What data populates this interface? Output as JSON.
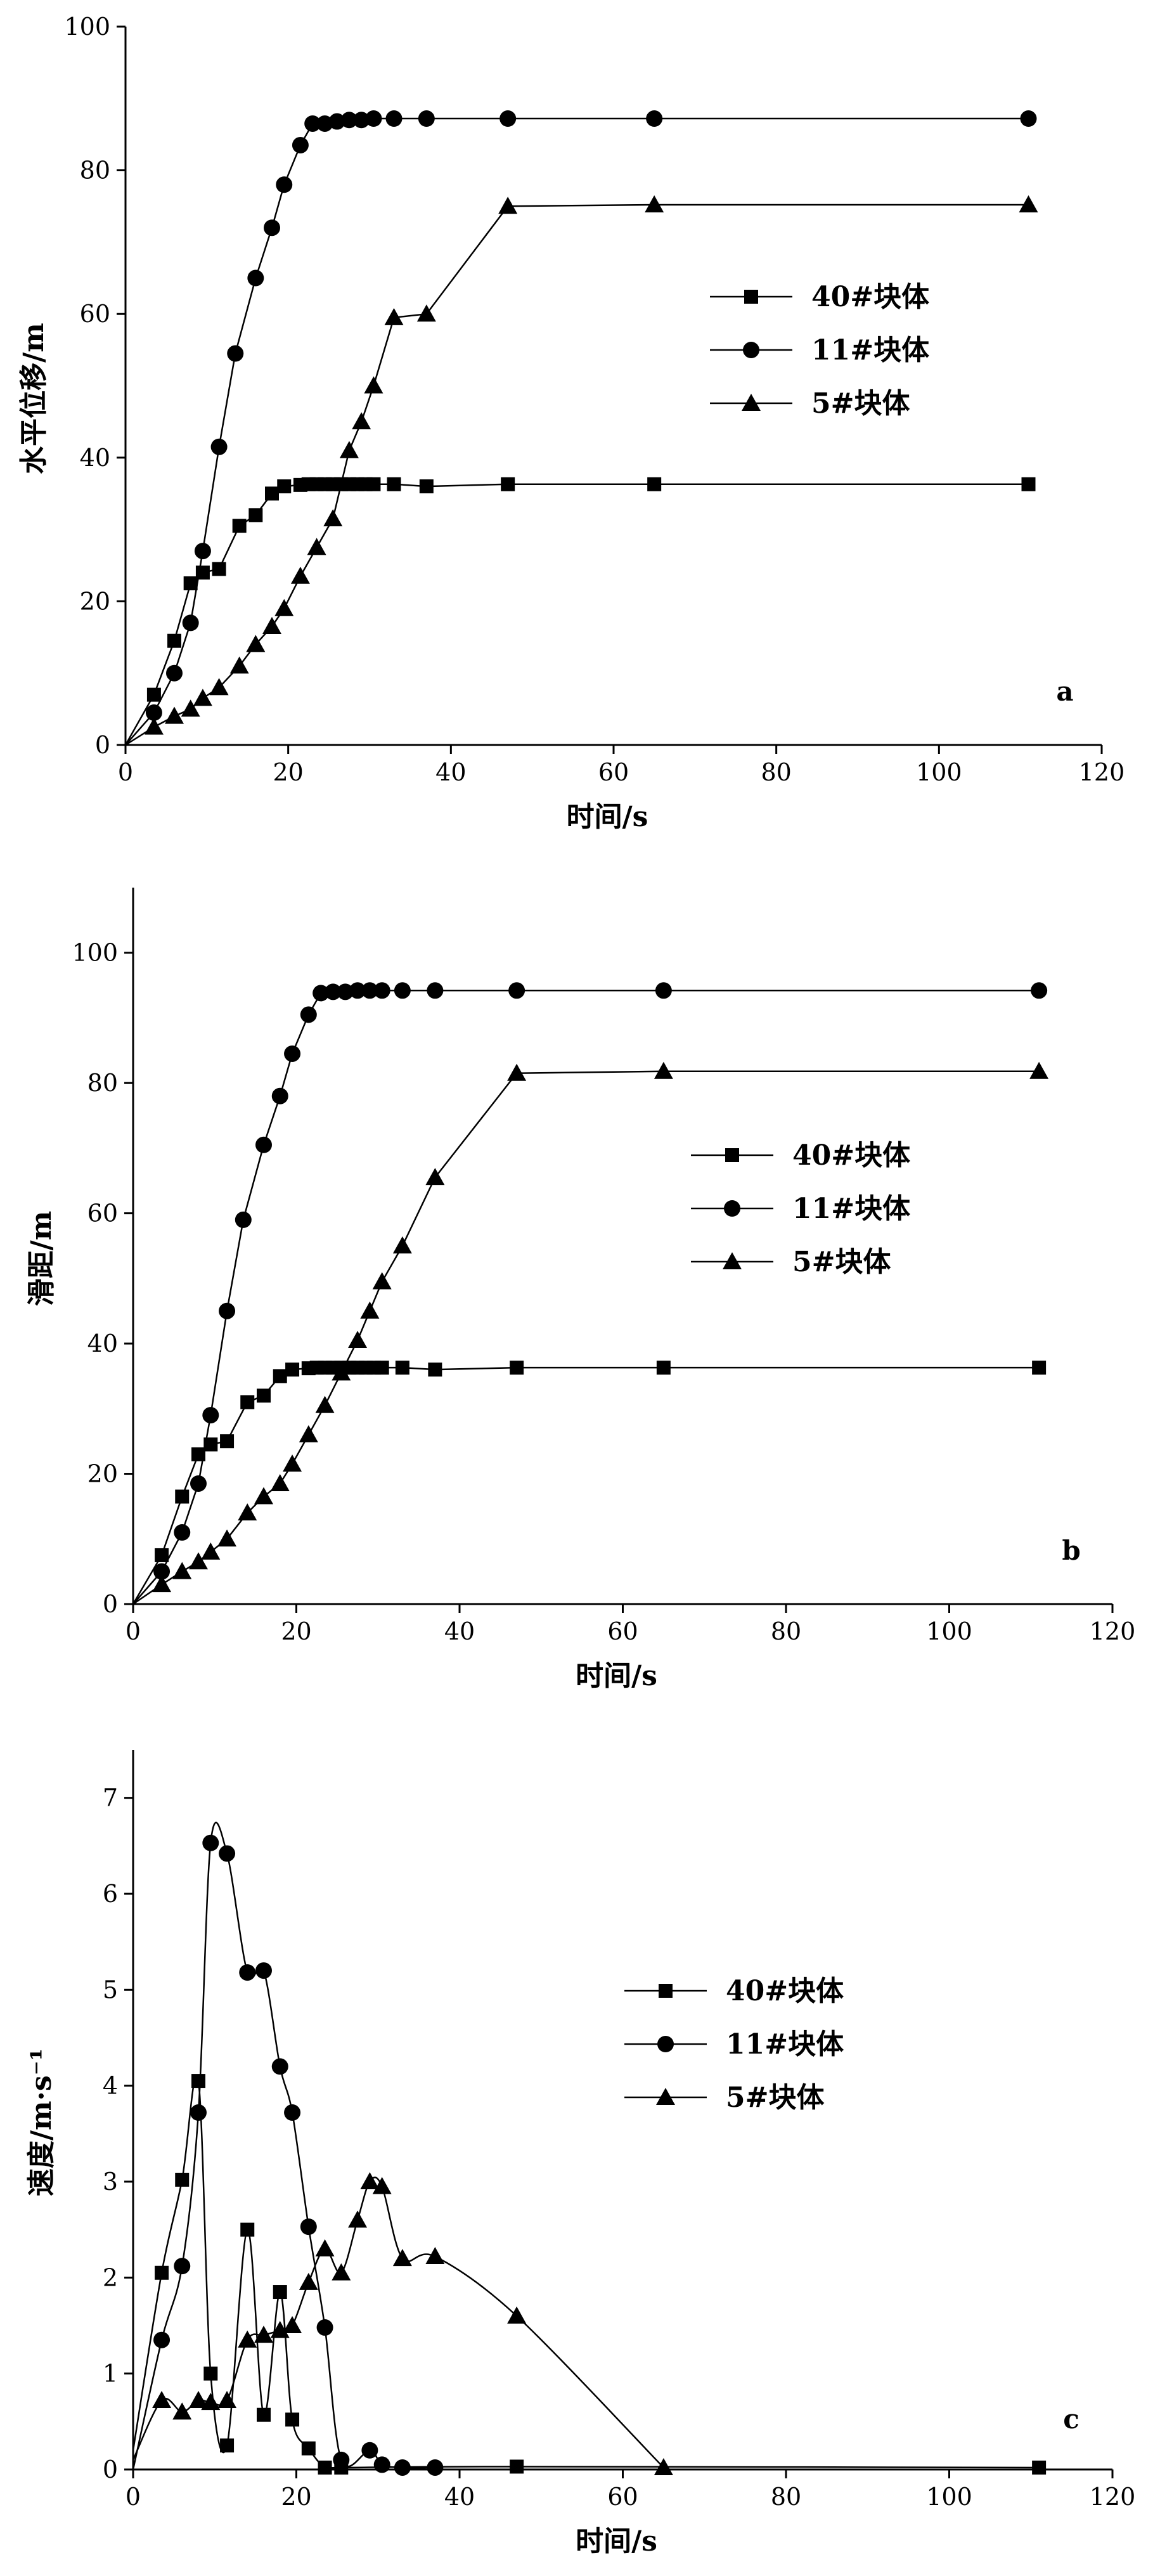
{
  "figure": {
    "charts": [
      {
        "id": "a",
        "type": "line",
        "panel_label": "a",
        "xlabel": "时间/s",
        "ylabel": "水平位移/m",
        "xlim": [
          0,
          120
        ],
        "ylim": [
          0,
          100
        ],
        "xticks": [
          0,
          20,
          40,
          60,
          80,
          100,
          120
        ],
        "yticks": [
          0,
          20,
          40,
          60,
          80,
          100
        ],
        "grid": false,
        "legend_position": "center-right",
        "series": [
          {
            "name": "40#块体",
            "marker": "square",
            "smooth": false,
            "x": [
              0,
              3.5,
              6,
              8,
              9.5,
              11.5,
              14,
              16,
              18,
              19.5,
              21.5,
              22.5,
              23.5,
              24.5,
              25.5,
              26.5,
              27.5,
              28.5,
              29.5,
              30.5,
              33,
              37,
              47,
              65,
              111
            ],
            "y": [
              0,
              7,
              14.5,
              22.5,
              24,
              24.5,
              30.5,
              32,
              35,
              36,
              36.2,
              36.3,
              36.3,
              36.3,
              36.3,
              36.3,
              36.3,
              36.3,
              36.3,
              36.3,
              36.3,
              36,
              36.3,
              36.3,
              36.3
            ]
          },
          {
            "name": "11#块体",
            "marker": "circle",
            "smooth": false,
            "x": [
              0,
              3.5,
              6,
              8,
              9.5,
              11.5,
              13.5,
              16,
              18,
              19.5,
              21.5,
              23,
              24.5,
              26,
              27.5,
              29,
              30.5,
              33,
              37,
              47,
              65,
              111
            ],
            "y": [
              0,
              4.5,
              10,
              17,
              27,
              41.5,
              54.5,
              65,
              72,
              78,
              83.5,
              86.5,
              86.5,
              86.8,
              87,
              87,
              87.2,
              87.2,
              87.2,
              87.2,
              87.2,
              87.2
            ],
            "x_extra": []
          },
          {
            "name": "5#块体",
            "marker": "triangle",
            "smooth": false,
            "x": [
              0,
              3.5,
              6,
              8,
              9.5,
              11.5,
              14,
              16,
              18,
              19.5,
              21.5,
              23.5,
              25.5,
              27.5,
              29,
              30.5,
              33,
              37,
              47,
              65,
              111
            ],
            "y": [
              0,
              2.5,
              4,
              5,
              6.5,
              8,
              11,
              14,
              16.5,
              19,
              23.5,
              27.5,
              31.5,
              41,
              45,
              50,
              59.5,
              60,
              75,
              75.2,
              75.2
            ]
          }
        ]
      },
      {
        "id": "b",
        "type": "line",
        "panel_label": "b",
        "xlabel": "时间/s",
        "ylabel": "滑距/m",
        "xlim": [
          0,
          120
        ],
        "ylim": [
          0,
          110
        ],
        "xticks": [
          0,
          20,
          40,
          60,
          80,
          100,
          120
        ],
        "yticks": [
          0,
          20,
          40,
          60,
          80,
          100
        ],
        "grid": false,
        "legend_position": "center-right",
        "series": [
          {
            "name": "40#块体",
            "marker": "square",
            "smooth": false,
            "x": [
              0,
              3.5,
              6,
              8,
              9.5,
              11.5,
              14,
              16,
              18,
              19.5,
              21.5,
              22.5,
              23.5,
              24.5,
              25.5,
              26.5,
              27.5,
              28.5,
              29.5,
              30.5,
              33,
              37,
              47,
              65,
              111
            ],
            "y": [
              0,
              7.5,
              16.5,
              23,
              24.5,
              25,
              31,
              32,
              35,
              36,
              36.2,
              36.3,
              36.3,
              36.3,
              36.3,
              36.3,
              36.3,
              36.3,
              36.3,
              36.3,
              36.3,
              36,
              36.3,
              36.3,
              36.3
            ]
          },
          {
            "name": "11#块体",
            "marker": "circle",
            "smooth": false,
            "x": [
              0,
              3.5,
              6,
              8,
              9.5,
              11.5,
              13.5,
              16,
              18,
              19.5,
              21.5,
              23,
              24.5,
              26,
              27.5,
              29,
              30.5,
              33,
              37,
              47,
              65,
              111
            ],
            "y": [
              0,
              5,
              11,
              18.5,
              29,
              45,
              59,
              70.5,
              78,
              84.5,
              90.5,
              93.8,
              94,
              94,
              94.2,
              94.2,
              94.2,
              94.2,
              94.2,
              94.2,
              94.2,
              94.2
            ]
          },
          {
            "name": "5#块体",
            "marker": "triangle",
            "smooth": false,
            "x": [
              0,
              3.5,
              6,
              8,
              9.5,
              11.5,
              14,
              16,
              18,
              19.5,
              21.5,
              23.5,
              25.5,
              27.5,
              29,
              30.5,
              33,
              37,
              47,
              65,
              111
            ],
            "y": [
              0,
              3,
              5,
              6.5,
              8,
              10,
              14,
              16.5,
              18.5,
              21.5,
              26,
              30.5,
              35.5,
              40.5,
              45,
              49.5,
              55,
              65.5,
              81.5,
              81.8,
              81.8
            ]
          }
        ]
      },
      {
        "id": "c",
        "type": "line",
        "panel_label": "c",
        "xlabel": "时间/s",
        "ylabel": "速度/m·s⁻¹",
        "xlim": [
          0,
          120
        ],
        "ylim": [
          0,
          7.5
        ],
        "xticks": [
          0,
          20,
          40,
          60,
          80,
          100,
          120
        ],
        "yticks": [
          0,
          1,
          2,
          3,
          4,
          5,
          6,
          7
        ],
        "grid": false,
        "legend_position": "center-right",
        "series": [
          {
            "name": "40#块体",
            "marker": "square",
            "smooth": true,
            "x": [
              0,
              3.5,
              6,
              8,
              9.5,
              11.5,
              14,
              16,
              18,
              19.5,
              21.5,
              23.5,
              25.5,
              47,
              111
            ],
            "y": [
              0.2,
              2.05,
              3.02,
              4.05,
              1.0,
              0.25,
              2.5,
              0.57,
              1.85,
              0.52,
              0.22,
              0.02,
              0.02,
              0.03,
              0.02
            ]
          },
          {
            "name": "11#块体",
            "marker": "circle",
            "smooth": true,
            "x": [
              0,
              3.5,
              6,
              8,
              9.5,
              11.5,
              14,
              16,
              18,
              19.5,
              21.5,
              23.5,
              25.5,
              29,
              30.5,
              33,
              37
            ],
            "y": [
              0,
              1.35,
              2.12,
              3.72,
              6.53,
              6.42,
              5.18,
              5.2,
              4.2,
              3.72,
              2.53,
              1.48,
              0.1,
              0.2,
              0.05,
              0.02,
              0.02
            ]
          },
          {
            "name": "5#块体",
            "marker": "triangle",
            "smooth": true,
            "x": [
              0,
              3.5,
              6,
              8,
              9.5,
              11.5,
              14,
              16,
              18,
              19.5,
              21.5,
              23.5,
              25.5,
              27.5,
              29,
              30.5,
              33,
              37,
              47,
              65
            ],
            "y": [
              0.1,
              0.72,
              0.6,
              0.72,
              0.7,
              0.72,
              1.35,
              1.4,
              1.45,
              1.5,
              1.95,
              2.3,
              2.05,
              2.6,
              3.0,
              2.95,
              2.2,
              2.22,
              1.6,
              0.02
            ]
          }
        ]
      }
    ]
  }
}
